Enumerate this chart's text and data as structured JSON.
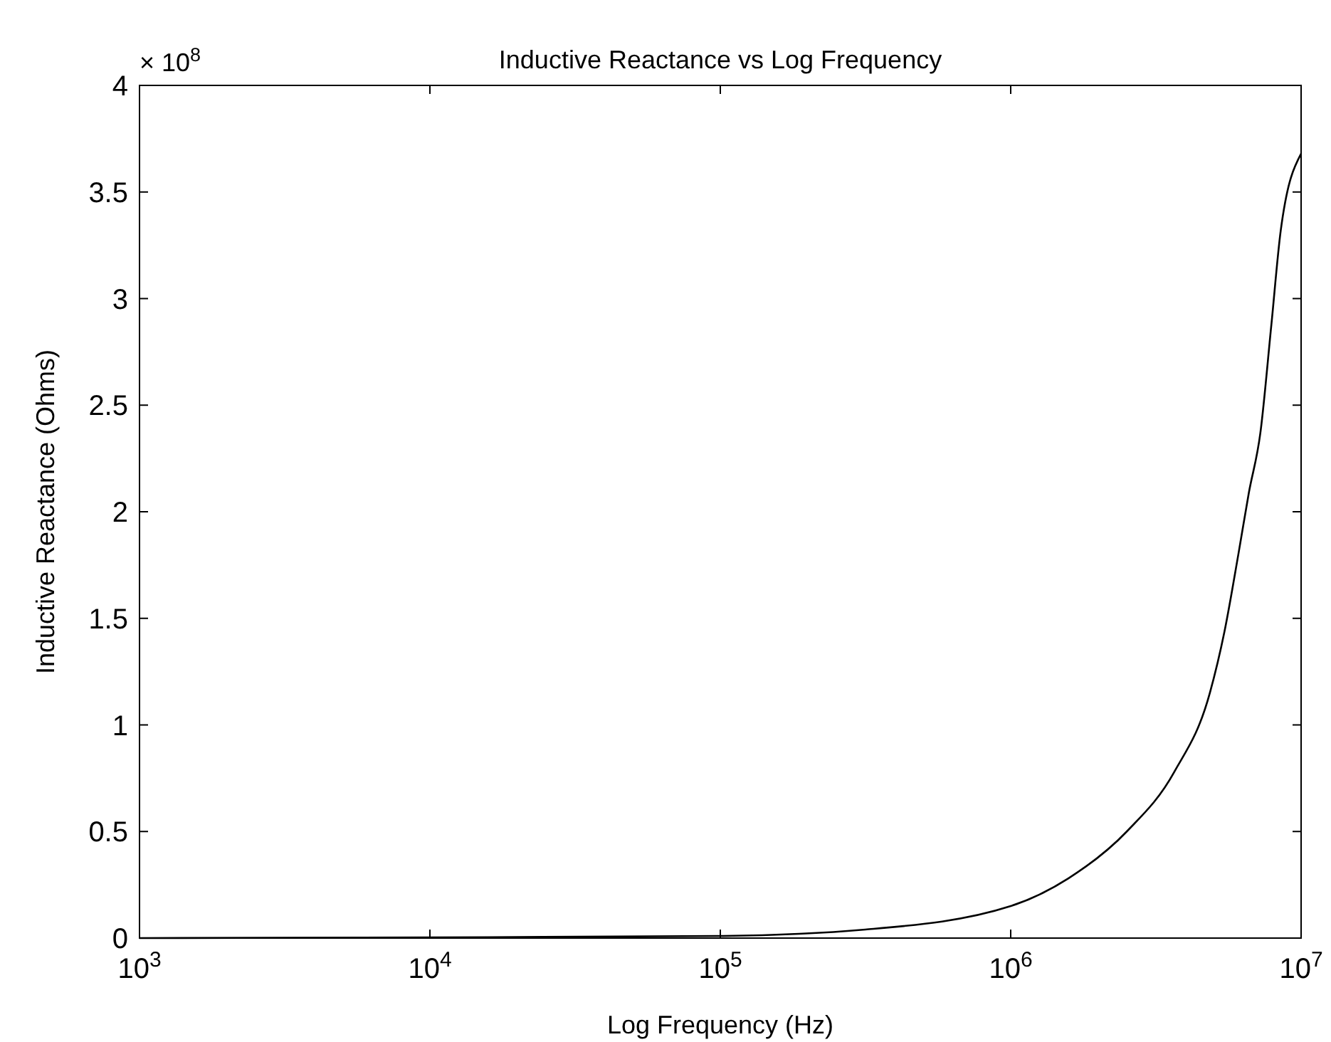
{
  "chart_data": {
    "type": "line",
    "title": "Inductive Reactance vs Log Frequency",
    "xlabel": "Log Frequency (Hz)",
    "ylabel": "Inductive Reactance (Ohms)",
    "annotations": [
      "× 10$^{8}$"
    ],
    "log": "x",
    "x": [
      1000,
      10000,
      100000,
      316000,
      1000000,
      1580000,
      2510000,
      3660000,
      4850000,
      5450000,
      6080000,
      6610000,
      7240000,
      7890000,
      8510000,
      10000000
    ],
    "series": [
      {
        "color": "#000000",
        "values": [
          0,
          0.003,
          0.01,
          0.04,
          0.15,
          0.28,
          0.5,
          0.78,
          1.15,
          1.44,
          1.8,
          2.09,
          2.37,
          2.87,
          3.32,
          3.68
        ]
      }
    ],
    "xlim": [
      1000,
      10000000
    ],
    "xticks": [
      {
        "value": 1000,
        "label": "10$^{3}$"
      },
      {
        "value": 10000,
        "label": "10$^{4}$"
      },
      {
        "value": 100000,
        "label": "10$^{5}$"
      },
      {
        "value": 1000000,
        "label": "10$^{6}$"
      },
      {
        "value": 10000000,
        "label": "10$^{7}$"
      }
    ],
    "ylim": [
      0,
      4
    ],
    "yticks": [
      0,
      0.5,
      1,
      1.5,
      2,
      2.5,
      3,
      3.5,
      4
    ],
    "grid": false
  }
}
